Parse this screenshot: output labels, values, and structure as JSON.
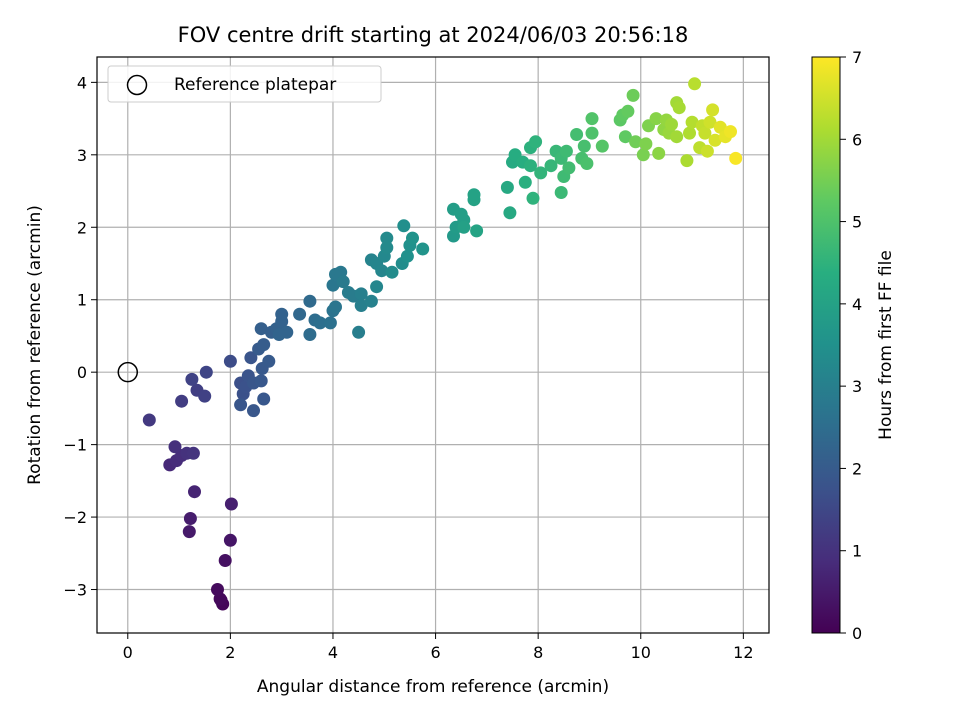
{
  "chart_data": {
    "type": "scatter",
    "title": "FOV centre drift starting at 2024/06/03 20:56:18",
    "xlabel": "Angular distance from reference (arcmin)",
    "ylabel": "Rotation from reference (arcmin)",
    "xlim": [
      -0.6,
      12.5
    ],
    "ylim": [
      -3.6,
      4.35
    ],
    "xticks": [
      0,
      2,
      4,
      6,
      8,
      10,
      12
    ],
    "yticks": [
      -3,
      -2,
      -1,
      0,
      1,
      2,
      3,
      4
    ],
    "grid": true,
    "legend": {
      "placement": "top-left",
      "entries": [
        "Reference platepar"
      ]
    },
    "reference_point": {
      "x": 0,
      "y": 0
    },
    "colorbar": {
      "label": "Hours from first FF file",
      "colormap": "viridis",
      "range": [
        0,
        7
      ],
      "ticks": [
        0,
        1,
        2,
        3,
        4,
        5,
        6,
        7
      ]
    },
    "series": [
      {
        "values": [
          {
            "x": 1.85,
            "y": -3.2,
            "c": 0.1
          },
          {
            "x": 1.82,
            "y": -3.15,
            "c": 0.12
          },
          {
            "x": 1.8,
            "y": -3.13,
            "c": 0.15
          },
          {
            "x": 1.75,
            "y": -3.0,
            "c": 0.2
          },
          {
            "x": 1.9,
            "y": -2.6,
            "c": 0.3
          },
          {
            "x": 2.0,
            "y": -2.32,
            "c": 0.4
          },
          {
            "x": 1.2,
            "y": -2.2,
            "c": 0.5
          },
          {
            "x": 1.22,
            "y": -2.02,
            "c": 0.55
          },
          {
            "x": 2.02,
            "y": -1.82,
            "c": 0.6
          },
          {
            "x": 1.3,
            "y": -1.65,
            "c": 0.7
          },
          {
            "x": 0.82,
            "y": -1.28,
            "c": 0.8
          },
          {
            "x": 0.95,
            "y": -1.22,
            "c": 0.85
          },
          {
            "x": 1.05,
            "y": -1.15,
            "c": 0.9
          },
          {
            "x": 0.92,
            "y": -1.03,
            "c": 0.95
          },
          {
            "x": 1.15,
            "y": -1.12,
            "c": 1.0
          },
          {
            "x": 1.28,
            "y": -1.12,
            "c": 1.05
          },
          {
            "x": 0.42,
            "y": -0.66,
            "c": 1.15
          },
          {
            "x": 1.05,
            "y": -0.4,
            "c": 1.25
          },
          {
            "x": 1.35,
            "y": -0.25,
            "c": 1.3
          },
          {
            "x": 1.5,
            "y": -0.33,
            "c": 1.35
          },
          {
            "x": 1.25,
            "y": -0.1,
            "c": 1.4
          },
          {
            "x": 1.53,
            "y": 0.0,
            "c": 1.45
          },
          {
            "x": 2.0,
            "y": 0.15,
            "c": 1.6
          },
          {
            "x": 2.2,
            "y": -0.15,
            "c": 1.7
          },
          {
            "x": 2.25,
            "y": -0.3,
            "c": 1.72
          },
          {
            "x": 2.3,
            "y": -0.2,
            "c": 1.75
          },
          {
            "x": 2.35,
            "y": -0.05,
            "c": 1.8
          },
          {
            "x": 2.4,
            "y": 0.2,
            "c": 1.82
          },
          {
            "x": 2.45,
            "y": -0.15,
            "c": 1.85
          },
          {
            "x": 2.2,
            "y": -0.45,
            "c": 1.85
          },
          {
            "x": 2.45,
            "y": -0.53,
            "c": 1.88
          },
          {
            "x": 2.65,
            "y": -0.37,
            "c": 1.9
          },
          {
            "x": 2.6,
            "y": -0.12,
            "c": 1.92
          },
          {
            "x": 2.62,
            "y": 0.05,
            "c": 1.95
          },
          {
            "x": 2.75,
            "y": 0.15,
            "c": 1.98
          },
          {
            "x": 2.55,
            "y": 0.32,
            "c": 2.0
          },
          {
            "x": 2.65,
            "y": 0.38,
            "c": 2.05
          },
          {
            "x": 2.6,
            "y": 0.6,
            "c": 2.1
          },
          {
            "x": 2.8,
            "y": 0.55,
            "c": 2.1
          },
          {
            "x": 2.9,
            "y": 0.6,
            "c": 2.15
          },
          {
            "x": 3.0,
            "y": 0.7,
            "c": 2.2
          },
          {
            "x": 3.0,
            "y": 0.8,
            "c": 2.2
          },
          {
            "x": 3.1,
            "y": 0.55,
            "c": 2.25
          },
          {
            "x": 2.95,
            "y": 0.52,
            "c": 2.25
          },
          {
            "x": 3.35,
            "y": 0.8,
            "c": 2.35
          },
          {
            "x": 3.55,
            "y": 0.98,
            "c": 2.4
          },
          {
            "x": 3.55,
            "y": 0.52,
            "c": 2.45
          },
          {
            "x": 3.65,
            "y": 0.72,
            "c": 2.5
          },
          {
            "x": 3.75,
            "y": 0.68,
            "c": 2.55
          },
          {
            "x": 3.95,
            "y": 0.68,
            "c": 2.6
          },
          {
            "x": 4.0,
            "y": 0.85,
            "c": 2.65
          },
          {
            "x": 4.05,
            "y": 0.9,
            "c": 2.7
          },
          {
            "x": 4.0,
            "y": 1.2,
            "c": 2.75
          },
          {
            "x": 4.05,
            "y": 1.35,
            "c": 2.8
          },
          {
            "x": 4.15,
            "y": 1.38,
            "c": 2.8
          },
          {
            "x": 4.2,
            "y": 1.25,
            "c": 2.85
          },
          {
            "x": 4.3,
            "y": 1.1,
            "c": 2.9
          },
          {
            "x": 4.4,
            "y": 1.05,
            "c": 2.9
          },
          {
            "x": 4.5,
            "y": 0.55,
            "c": 2.95
          },
          {
            "x": 4.55,
            "y": 0.92,
            "c": 3.0
          },
          {
            "x": 4.55,
            "y": 1.08,
            "c": 3.0
          },
          {
            "x": 4.75,
            "y": 0.98,
            "c": 3.05
          },
          {
            "x": 4.75,
            "y": 1.55,
            "c": 3.1
          },
          {
            "x": 4.85,
            "y": 1.5,
            "c": 3.15
          },
          {
            "x": 4.85,
            "y": 1.18,
            "c": 3.2
          },
          {
            "x": 4.95,
            "y": 1.4,
            "c": 3.2
          },
          {
            "x": 5.0,
            "y": 1.6,
            "c": 3.25
          },
          {
            "x": 5.05,
            "y": 1.85,
            "c": 3.3
          },
          {
            "x": 5.05,
            "y": 1.72,
            "c": 3.3
          },
          {
            "x": 5.15,
            "y": 1.38,
            "c": 3.35
          },
          {
            "x": 5.35,
            "y": 1.5,
            "c": 3.4
          },
          {
            "x": 5.38,
            "y": 2.02,
            "c": 3.45
          },
          {
            "x": 5.45,
            "y": 1.6,
            "c": 3.5
          },
          {
            "x": 5.5,
            "y": 1.75,
            "c": 3.5
          },
          {
            "x": 5.55,
            "y": 1.85,
            "c": 3.55
          },
          {
            "x": 5.75,
            "y": 1.7,
            "c": 3.6
          },
          {
            "x": 6.35,
            "y": 1.88,
            "c": 3.75
          },
          {
            "x": 6.4,
            "y": 2.0,
            "c": 3.8
          },
          {
            "x": 6.35,
            "y": 2.25,
            "c": 3.85
          },
          {
            "x": 6.5,
            "y": 2.18,
            "c": 3.9
          },
          {
            "x": 6.55,
            "y": 2.1,
            "c": 3.9
          },
          {
            "x": 6.55,
            "y": 2.0,
            "c": 3.95
          },
          {
            "x": 6.75,
            "y": 2.38,
            "c": 4.0
          },
          {
            "x": 6.75,
            "y": 2.45,
            "c": 4.0
          },
          {
            "x": 6.8,
            "y": 1.95,
            "c": 4.05
          },
          {
            "x": 7.4,
            "y": 2.55,
            "c": 4.2
          },
          {
            "x": 7.45,
            "y": 2.2,
            "c": 4.2
          },
          {
            "x": 7.5,
            "y": 2.9,
            "c": 4.25
          },
          {
            "x": 7.55,
            "y": 3.0,
            "c": 4.3
          },
          {
            "x": 7.7,
            "y": 2.9,
            "c": 4.35
          },
          {
            "x": 7.75,
            "y": 2.62,
            "c": 4.4
          },
          {
            "x": 7.85,
            "y": 2.85,
            "c": 4.45
          },
          {
            "x": 7.85,
            "y": 3.1,
            "c": 4.45
          },
          {
            "x": 7.9,
            "y": 2.4,
            "c": 4.5
          },
          {
            "x": 7.95,
            "y": 3.18,
            "c": 4.5
          },
          {
            "x": 8.05,
            "y": 2.75,
            "c": 4.55
          },
          {
            "x": 8.25,
            "y": 2.85,
            "c": 4.6
          },
          {
            "x": 8.35,
            "y": 3.05,
            "c": 4.65
          },
          {
            "x": 8.45,
            "y": 2.95,
            "c": 4.7
          },
          {
            "x": 8.45,
            "y": 2.48,
            "c": 4.7
          },
          {
            "x": 8.5,
            "y": 2.7,
            "c": 4.75
          },
          {
            "x": 8.55,
            "y": 3.05,
            "c": 4.75
          },
          {
            "x": 8.6,
            "y": 2.82,
            "c": 4.8
          },
          {
            "x": 8.75,
            "y": 3.28,
            "c": 4.85
          },
          {
            "x": 8.85,
            "y": 2.95,
            "c": 4.9
          },
          {
            "x": 8.9,
            "y": 3.12,
            "c": 4.9
          },
          {
            "x": 8.95,
            "y": 2.88,
            "c": 4.95
          },
          {
            "x": 9.05,
            "y": 3.3,
            "c": 5.0
          },
          {
            "x": 9.05,
            "y": 3.5,
            "c": 5.05
          },
          {
            "x": 9.25,
            "y": 3.12,
            "c": 5.1
          },
          {
            "x": 9.6,
            "y": 3.48,
            "c": 5.2
          },
          {
            "x": 9.65,
            "y": 3.55,
            "c": 5.25
          },
          {
            "x": 9.7,
            "y": 3.25,
            "c": 5.25
          },
          {
            "x": 9.75,
            "y": 3.6,
            "c": 5.3
          },
          {
            "x": 9.85,
            "y": 3.82,
            "c": 5.4
          },
          {
            "x": 9.9,
            "y": 3.18,
            "c": 5.45
          },
          {
            "x": 10.05,
            "y": 3.0,
            "c": 5.55
          },
          {
            "x": 10.1,
            "y": 3.15,
            "c": 5.6
          },
          {
            "x": 10.15,
            "y": 3.4,
            "c": 5.6
          },
          {
            "x": 10.3,
            "y": 3.5,
            "c": 5.7
          },
          {
            "x": 10.35,
            "y": 3.02,
            "c": 5.75
          },
          {
            "x": 10.45,
            "y": 3.35,
            "c": 5.8
          },
          {
            "x": 10.5,
            "y": 3.48,
            "c": 5.85
          },
          {
            "x": 10.55,
            "y": 3.3,
            "c": 5.9
          },
          {
            "x": 10.6,
            "y": 3.42,
            "c": 5.95
          },
          {
            "x": 10.7,
            "y": 3.72,
            "c": 6.0
          },
          {
            "x": 10.7,
            "y": 3.25,
            "c": 6.0
          },
          {
            "x": 10.75,
            "y": 3.65,
            "c": 6.05
          },
          {
            "x": 10.9,
            "y": 2.92,
            "c": 6.1
          },
          {
            "x": 10.95,
            "y": 3.3,
            "c": 6.15
          },
          {
            "x": 11.0,
            "y": 3.45,
            "c": 6.2
          },
          {
            "x": 11.05,
            "y": 3.98,
            "c": 6.25
          },
          {
            "x": 11.15,
            "y": 3.1,
            "c": 6.3
          },
          {
            "x": 11.2,
            "y": 3.4,
            "c": 6.35
          },
          {
            "x": 11.25,
            "y": 3.3,
            "c": 6.4
          },
          {
            "x": 11.3,
            "y": 3.05,
            "c": 6.45
          },
          {
            "x": 11.35,
            "y": 3.45,
            "c": 6.5
          },
          {
            "x": 11.4,
            "y": 3.62,
            "c": 6.55
          },
          {
            "x": 11.45,
            "y": 3.2,
            "c": 6.6
          },
          {
            "x": 11.55,
            "y": 3.38,
            "c": 6.7
          },
          {
            "x": 11.65,
            "y": 3.25,
            "c": 6.75
          },
          {
            "x": 11.75,
            "y": 3.32,
            "c": 6.85
          },
          {
            "x": 11.85,
            "y": 2.95,
            "c": 6.95
          }
        ]
      }
    ]
  }
}
